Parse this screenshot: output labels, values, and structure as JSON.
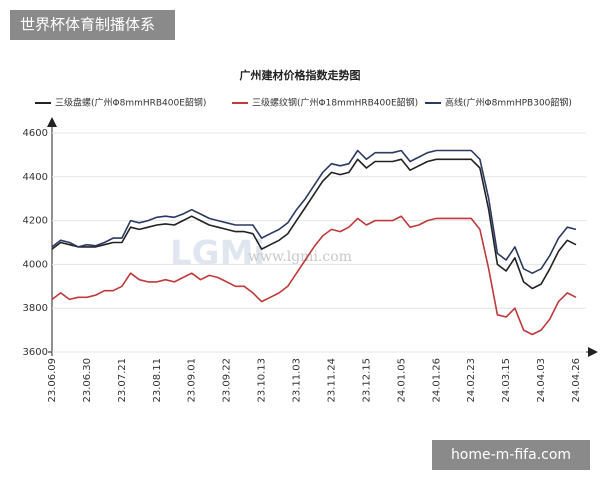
{
  "badges": {
    "top_left": "世界杯体育制播体系",
    "bottom_right": "home-m-fifa.com"
  },
  "watermark": {
    "logo": "LGMi",
    "site": "www.lgmi.com"
  },
  "chart_data": {
    "type": "line",
    "title": "广州建材价格指数走势图",
    "categories": [
      "23.06.09",
      null,
      null,
      null,
      "23.06.30",
      null,
      null,
      null,
      "23.07.21",
      null,
      null,
      null,
      "23.08.11",
      null,
      null,
      null,
      "23.09.01",
      null,
      null,
      null,
      "23.09.22",
      null,
      null,
      null,
      "23.10.13",
      null,
      null,
      null,
      "23.11.03",
      null,
      null,
      null,
      "23.11.24",
      null,
      null,
      null,
      "23.12.15",
      null,
      null,
      null,
      "24.01.05",
      null,
      null,
      null,
      "24.01.26",
      null,
      null,
      null,
      "24.02.23",
      null,
      null,
      null,
      "24.03.15",
      null,
      null,
      null,
      "24.04.03",
      null,
      null,
      null,
      "24.04.26"
    ],
    "series": [
      {
        "name": "三级盘螺(广州Φ8mmHRB400E韶钢)",
        "color": "#222222",
        "values": [
          4070,
          4100,
          4090,
          4080,
          4080,
          4080,
          4090,
          4100,
          4100,
          4170,
          4160,
          4170,
          4180,
          4185,
          4180,
          4200,
          4220,
          4200,
          4180,
          4170,
          4160,
          4150,
          4150,
          4140,
          4070,
          4090,
          4110,
          4140,
          4200,
          4260,
          4320,
          4380,
          4420,
          4410,
          4420,
          4480,
          4440,
          4470,
          4470,
          4470,
          4480,
          4430,
          4450,
          4470,
          4480,
          4480,
          4480,
          4480,
          4480,
          4440,
          4250,
          4000,
          3970,
          4030,
          3920,
          3890,
          3910,
          3980,
          4060,
          4110,
          4090
        ]
      },
      {
        "name": "三级螺纹钢(广州Φ18mmHRB400E韶钢)",
        "color": "#c0393b",
        "values": [
          3840,
          3870,
          3840,
          3850,
          3850,
          3860,
          3880,
          3880,
          3900,
          3960,
          3930,
          3920,
          3920,
          3930,
          3920,
          3940,
          3960,
          3930,
          3950,
          3940,
          3920,
          3900,
          3900,
          3870,
          3830,
          3850,
          3870,
          3900,
          3960,
          4020,
          4080,
          4130,
          4160,
          4150,
          4170,
          4210,
          4180,
          4200,
          4200,
          4200,
          4220,
          4170,
          4180,
          4200,
          4210,
          4210,
          4210,
          4210,
          4210,
          4160,
          3980,
          3770,
          3760,
          3800,
          3700,
          3680,
          3700,
          3750,
          3830,
          3870,
          3850
        ]
      },
      {
        "name": "高线(广州Φ8mmHPB300韶钢)",
        "color": "#2b3a63",
        "values": [
          4080,
          4110,
          4100,
          4080,
          4090,
          4085,
          4100,
          4120,
          4120,
          4200,
          4190,
          4200,
          4215,
          4220,
          4215,
          4230,
          4250,
          4230,
          4210,
          4200,
          4190,
          4180,
          4180,
          4180,
          4120,
          4140,
          4160,
          4190,
          4250,
          4300,
          4360,
          4420,
          4460,
          4450,
          4460,
          4520,
          4480,
          4510,
          4510,
          4510,
          4520,
          4470,
          4490,
          4510,
          4520,
          4520,
          4520,
          4520,
          4520,
          4480,
          4300,
          4050,
          4020,
          4080,
          3980,
          3960,
          3980,
          4040,
          4120,
          4170,
          4160
        ]
      }
    ],
    "ylim": [
      3600,
      4600
    ],
    "yticks": [
      3600,
      3800,
      4000,
      4200,
      4400,
      4600
    ],
    "grid": true
  }
}
